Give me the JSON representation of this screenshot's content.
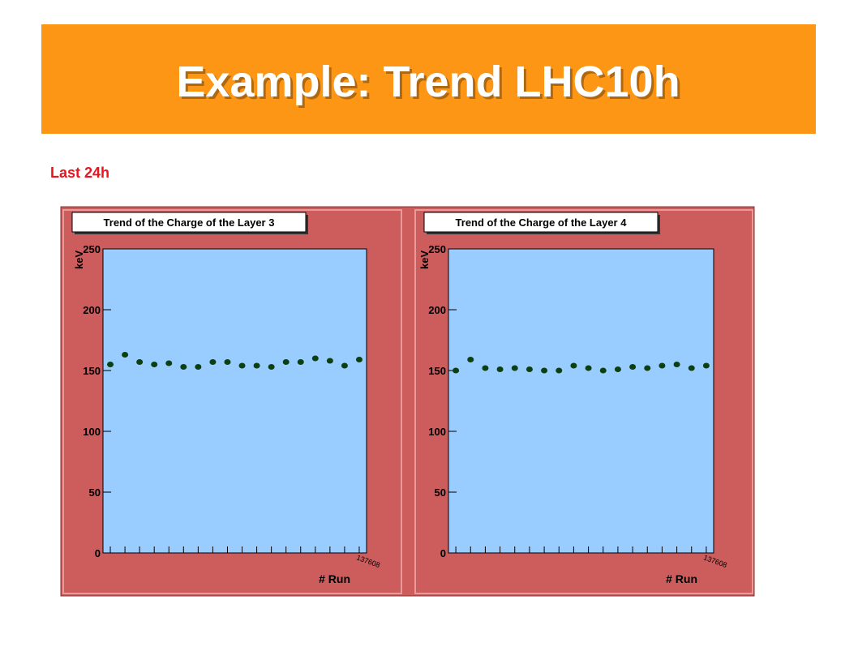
{
  "title": "Example: Trend LHC10h",
  "subtitle": "Last 24h",
  "chart_data": [
    {
      "type": "scatter",
      "title": "Trend of the Charge of the Layer 3",
      "xlabel": "# Run",
      "ylabel": "keV",
      "categories": [
        null,
        null,
        null,
        null,
        null,
        null,
        null,
        null,
        null,
        null,
        null,
        null,
        null,
        null,
        null,
        null,
        null,
        "137608"
      ],
      "values": [
        155,
        163,
        157,
        155,
        156,
        153,
        153,
        157,
        157,
        154,
        154,
        153,
        157,
        157,
        160,
        158,
        154,
        159
      ],
      "color": "#0d4010",
      "plot_color": "#99ccff",
      "ylim": [
        0,
        250
      ],
      "yticks": [
        0,
        50,
        100,
        150,
        200,
        250
      ]
    },
    {
      "type": "scatter",
      "title": "Trend of the Charge of the Layer 4",
      "xlabel": "# Run",
      "ylabel": "keV",
      "categories": [
        null,
        null,
        null,
        null,
        null,
        null,
        null,
        null,
        null,
        null,
        null,
        null,
        null,
        null,
        null,
        null,
        null,
        "137608"
      ],
      "values": [
        150,
        159,
        152,
        151,
        152,
        151,
        150,
        150,
        154,
        152,
        150,
        151,
        153,
        152,
        154,
        155,
        152,
        154
      ],
      "color": "#0d4010",
      "plot_color": "#99ccff",
      "ylim": [
        0,
        250
      ],
      "yticks": [
        0,
        50,
        100,
        150,
        200,
        250
      ]
    }
  ]
}
